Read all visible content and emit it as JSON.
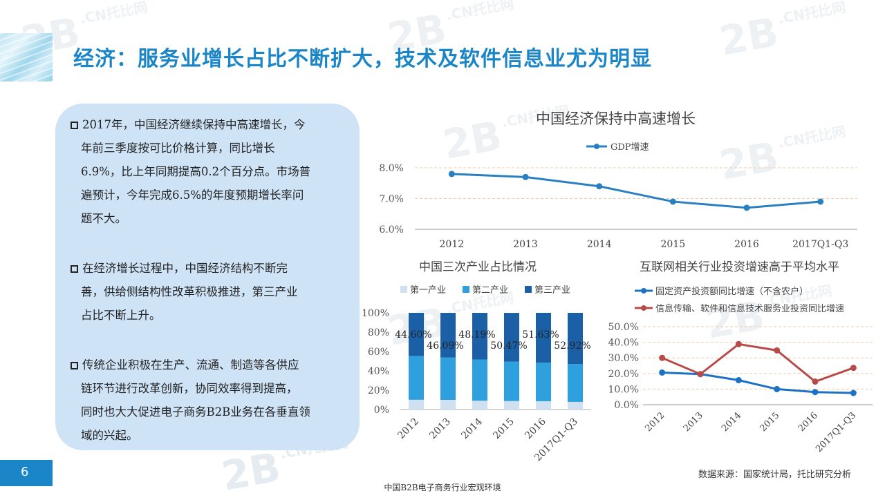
{
  "header": {
    "title": "经济：服务业增长占比不断扩大，技术及软件信息业尤为明显"
  },
  "left_panel": {
    "paragraphs": [
      {
        "lines": [
          "2017年，中国经济继续保持中高速增长，今",
          "年前三季度按可比价格计算，同比增长",
          "6.9%，比上年同期提高0.2个百分点。市场普",
          "遍预计，今年完成6.5%的年度预期增长率问",
          "题不大。"
        ]
      },
      {
        "lines": [
          "在经济增长过程中，中国经济结构不断完",
          "善，供给侧结构性改革积极推进，第三产业",
          "占比不断上升。"
        ]
      },
      {
        "lines": [
          "传统企业积极在生产、流通、制造等各供应",
          "链环节进行改革创新，协同效率得到提高，",
          "同时也大大促进电子商务B2B业务在各垂直领",
          "域的兴起。"
        ]
      }
    ]
  },
  "chart_data": [
    {
      "type": "line",
      "title": "中国经济保持中高速增长",
      "categories": [
        "2012",
        "2013",
        "2014",
        "2015",
        "2016",
        "2017Q1-Q3"
      ],
      "series": [
        {
          "name": "GDP增速",
          "values": [
            7.8,
            7.7,
            7.4,
            6.9,
            6.7,
            6.9
          ],
          "color": "#2a7fc1"
        }
      ],
      "ylim": [
        6.0,
        8.0
      ],
      "yticks": [
        {
          "v": 6.0,
          "label": "6.0%"
        },
        {
          "v": 7.0,
          "label": "7.0%"
        },
        {
          "v": 8.0,
          "label": "8.0%"
        }
      ],
      "legend": "top"
    },
    {
      "type": "bar",
      "stacked": true,
      "title": "中国三次产业占比情况",
      "categories": [
        "2012",
        "2013",
        "2014",
        "2015",
        "2016",
        "2017Q1-Q3"
      ],
      "series": [
        {
          "name": "第一产业",
          "values": [
            10.1,
            10.0,
            9.1,
            8.8,
            8.6,
            7.9
          ],
          "color": "#cfe0f3"
        },
        {
          "name": "第二产业",
          "values": [
            45.3,
            43.9,
            42.7,
            40.7,
            39.8,
            39.2
          ],
          "color": "#2ea0de"
        },
        {
          "name": "第三产业",
          "values": [
            44.6,
            46.09,
            48.19,
            50.47,
            51.63,
            52.92
          ],
          "color": "#1b5fa6"
        }
      ],
      "data_labels": [
        "44.60%",
        "46.09%",
        "48.19%",
        "50.47%",
        "51.63%",
        "52.92%"
      ],
      "yticks": [
        {
          "v": 0,
          "label": "0%"
        },
        {
          "v": 20,
          "label": "20%"
        },
        {
          "v": 40,
          "label": "40%"
        },
        {
          "v": 60,
          "label": "60%"
        },
        {
          "v": 80,
          "label": "80%"
        },
        {
          "v": 100,
          "label": "100%"
        }
      ],
      "ylim": [
        0,
        100
      ],
      "legend": "top"
    },
    {
      "type": "line",
      "title": "互联网相关行业投资增速高于平均水平",
      "categories": [
        "2012",
        "2013",
        "2014",
        "2015",
        "2016",
        "2017Q1-Q3"
      ],
      "series": [
        {
          "name": "固定资产投资额同比增速（不含农户）",
          "values": [
            20.6,
            19.6,
            15.7,
            10.0,
            8.1,
            7.5
          ],
          "color": "#1b72c4"
        },
        {
          "name": "信息传输、软件和信息技术服务业投资同比增速",
          "values": [
            30.0,
            19.6,
            38.8,
            34.8,
            14.8,
            23.6
          ],
          "color": "#b84a4a"
        }
      ],
      "ylim": [
        0,
        50
      ],
      "yticks": [
        {
          "v": 0,
          "label": "0.0%"
        },
        {
          "v": 10,
          "label": "10.0%"
        },
        {
          "v": 20,
          "label": "20.0%"
        },
        {
          "v": 30,
          "label": "30.0%"
        },
        {
          "v": 40,
          "label": "40.0%"
        },
        {
          "v": 50,
          "label": "50.0%"
        }
      ],
      "legend": "top"
    }
  ],
  "footer": {
    "page_number": "6",
    "source": "数据来源：国家统计局，托比研究分析",
    "caption": "中国B2B电子商务行业宏观环境",
    "watermark_text": "2B",
    "watermark_sub": ".CN托比网"
  }
}
